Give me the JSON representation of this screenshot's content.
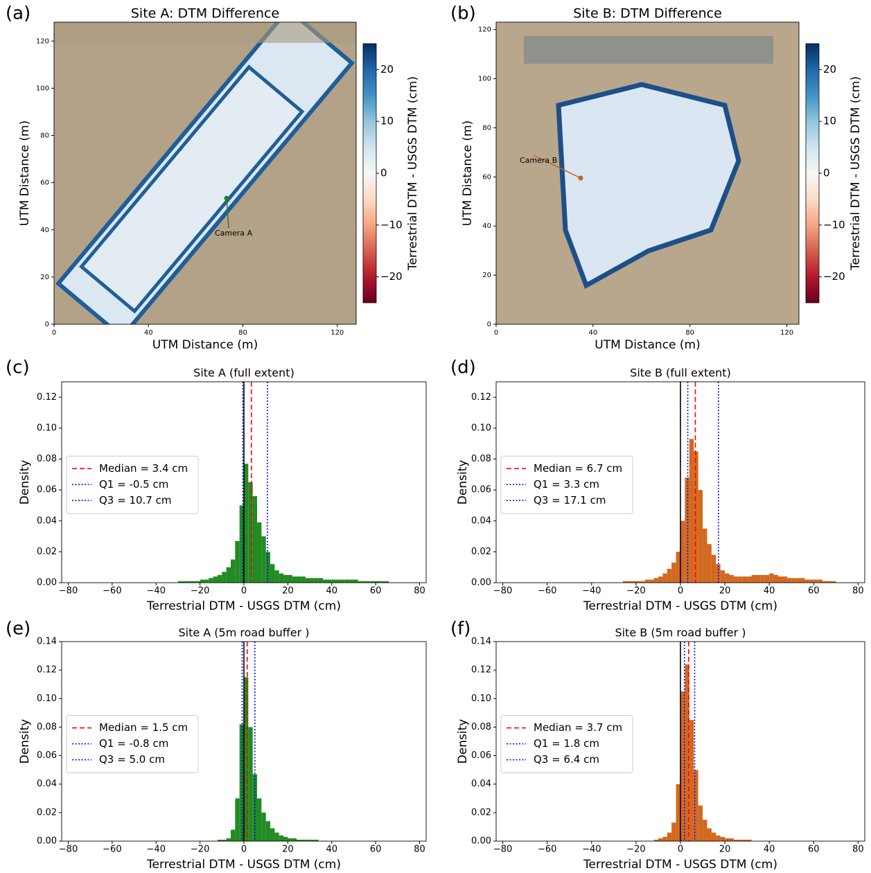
{
  "chart_data": [
    {
      "type": "heatmap",
      "panel_label": "(a)",
      "title": "Site A: DTM Difference",
      "xlabel": "UTM Distance (m)",
      "ylabel": "UTM Distance (m)",
      "xlim": [
        0,
        128
      ],
      "ylim": [
        0,
        128
      ],
      "xticks": [
        0,
        40,
        80,
        120
      ],
      "yticks": [
        0,
        20,
        40,
        60,
        80,
        100,
        120
      ],
      "colorbar_label": "Terrestrial DTM - USGS DTM (cm)",
      "clim": [
        -25,
        25
      ],
      "cticks": [
        {
          "value": -20,
          "label": "−20"
        },
        {
          "value": -10,
          "label": "−10"
        },
        0,
        10,
        20
      ],
      "annotation": "Camera A",
      "annotation_color": "#2a7a2a"
    },
    {
      "type": "heatmap",
      "panel_label": "(b)",
      "title": "Site B: DTM Difference",
      "xlabel": "UTM Distance (m)",
      "ylabel": "UTM Distance (m)",
      "xlim": [
        0,
        125
      ],
      "ylim": [
        0,
        123
      ],
      "xticks": [
        0,
        40,
        80,
        120
      ],
      "yticks": [
        0,
        20,
        40,
        60,
        80,
        100,
        120
      ],
      "colorbar_label": "Terrestrial DTM - USGS DTM (cm)",
      "clim": [
        -25,
        25
      ],
      "cticks": [
        {
          "value": -20,
          "label": "−20"
        },
        {
          "value": -10,
          "label": "−10"
        },
        0,
        10,
        20
      ],
      "annotation": "Camera B",
      "annotation_color": "#c8621e"
    },
    {
      "type": "histogram",
      "panel_label": "(c)",
      "title": "Site A (full extent)",
      "xlabel": "Terrestrial DTM - USGS DTM (cm)",
      "ylabel": "Density",
      "color": "#228b22",
      "bins": [
        -30,
        -28,
        -26,
        -24,
        -22,
        -20,
        -18,
        -16,
        -14,
        -12,
        -10,
        -8,
        -6,
        -4,
        -2,
        0,
        2,
        4,
        6,
        8,
        10,
        12,
        14,
        16,
        18,
        20,
        22,
        24,
        26,
        28,
        30,
        32,
        34,
        36,
        38,
        40,
        42,
        44,
        46,
        48,
        50,
        52,
        54,
        56,
        58,
        60,
        62,
        64,
        66,
        68,
        70
      ],
      "counts": [
        0.001,
        0.001,
        0.001,
        0.001,
        0.001,
        0.002,
        0.002,
        0.003,
        0.004,
        0.005,
        0.007,
        0.01,
        0.015,
        0.027,
        0.05,
        0.077,
        0.065,
        0.056,
        0.039,
        0.03,
        0.02,
        0.012,
        0.008,
        0.006,
        0.005,
        0.005,
        0.004,
        0.004,
        0.004,
        0.003,
        0.003,
        0.003,
        0.003,
        0.002,
        0.002,
        0.002,
        0.002,
        0.002,
        0.002,
        0.002,
        0.002,
        0.001,
        0.001,
        0.001,
        0.001,
        0.001,
        0.001,
        0.001,
        0.0,
        0.0
      ],
      "vlines": [
        {
          "value": 0,
          "color": "black",
          "style": "solid"
        },
        {
          "name": "Median = 3.4 cm",
          "value": 3.4,
          "color": "red",
          "style": "dashed"
        },
        {
          "name": "Q1 = -0.5 cm",
          "value": -0.5,
          "color": "blue",
          "style": "dotted"
        },
        {
          "name": "Q3 = 10.7 cm",
          "value": 10.7,
          "color": "blue",
          "style": "dotted"
        }
      ],
      "xlim": [
        -83,
        83
      ],
      "ylim": [
        0,
        0.13
      ],
      "xticks": [
        {
          "value": -80,
          "label": "−80"
        },
        {
          "value": -60,
          "label": "−60"
        },
        {
          "value": -40,
          "label": "−40"
        },
        {
          "value": -20,
          "label": "−20"
        },
        0,
        20,
        40,
        60,
        80
      ],
      "yticks": [
        {
          "value": 0,
          "label": "0.00"
        },
        0.02,
        0.04,
        0.06,
        0.08,
        {
          "value": 0.1,
          "label": "0.10"
        },
        0.12
      ],
      "legend": "center left"
    },
    {
      "type": "histogram",
      "panel_label": "(d)",
      "title": "Site B (full extent)",
      "xlabel": "Terrestrial DTM - USGS DTM (cm)",
      "ylabel": "Density",
      "color": "#d2691e",
      "bins": [
        -30,
        -28,
        -26,
        -24,
        -22,
        -20,
        -18,
        -16,
        -14,
        -12,
        -10,
        -8,
        -6,
        -4,
        -2,
        0,
        2,
        4,
        6,
        8,
        10,
        12,
        14,
        16,
        18,
        20,
        22,
        24,
        26,
        28,
        30,
        32,
        34,
        36,
        38,
        40,
        42,
        44,
        46,
        48,
        50,
        52,
        54,
        56,
        58,
        60,
        62,
        64,
        66,
        68,
        70
      ],
      "counts": [
        0,
        0,
        0.001,
        0.001,
        0.001,
        0.001,
        0.001,
        0.002,
        0.002,
        0.003,
        0.004,
        0.006,
        0.009,
        0.013,
        0.02,
        0.04,
        0.068,
        0.093,
        0.085,
        0.06,
        0.035,
        0.025,
        0.018,
        0.012,
        0.008,
        0.006,
        0.005,
        0.004,
        0.004,
        0.004,
        0.004,
        0.005,
        0.005,
        0.005,
        0.005,
        0.006,
        0.005,
        0.004,
        0.004,
        0.003,
        0.003,
        0.003,
        0.003,
        0.002,
        0.002,
        0.002,
        0.002,
        0.001,
        0.001,
        0.001
      ],
      "vlines": [
        {
          "value": 0,
          "color": "black",
          "style": "solid"
        },
        {
          "name": "Median = 6.7 cm",
          "value": 6.7,
          "color": "red",
          "style": "dashed"
        },
        {
          "name": "Q1 = 3.3 cm",
          "value": 3.3,
          "color": "blue",
          "style": "dotted"
        },
        {
          "name": "Q3 = 17.1 cm",
          "value": 17.1,
          "color": "blue",
          "style": "dotted"
        }
      ],
      "xlim": [
        -83,
        83
      ],
      "ylim": [
        0,
        0.13
      ],
      "xticks": [
        {
          "value": -80,
          "label": "−80"
        },
        {
          "value": -60,
          "label": "−60"
        },
        {
          "value": -40,
          "label": "−40"
        },
        {
          "value": -20,
          "label": "−20"
        },
        0,
        20,
        40,
        60,
        80
      ],
      "yticks": [
        {
          "value": 0,
          "label": "0.00"
        },
        0.02,
        0.04,
        0.06,
        0.08,
        {
          "value": 0.1,
          "label": "0.10"
        },
        0.12
      ],
      "legend": "center left"
    },
    {
      "type": "histogram",
      "panel_label": "(e)",
      "title": "Site A (5m road buffer )",
      "xlabel": "Terrestrial DTM - USGS DTM (cm)",
      "ylabel": "Density",
      "color": "#228b22",
      "bins": [
        -30,
        -28,
        -26,
        -24,
        -22,
        -20,
        -18,
        -16,
        -14,
        -12,
        -10,
        -8,
        -6,
        -4,
        -2,
        0,
        2,
        4,
        6,
        8,
        10,
        12,
        14,
        16,
        18,
        20,
        22,
        24,
        26,
        28,
        30,
        32,
        34,
        36,
        38,
        40,
        42,
        44,
        46,
        48,
        50,
        52,
        54,
        56,
        58,
        60,
        62,
        64,
        66,
        68,
        70
      ],
      "counts": [
        0,
        0,
        0,
        0,
        0,
        0,
        0,
        0,
        0,
        0.001,
        0.001,
        0.002,
        0.008,
        0.03,
        0.082,
        0.115,
        0.08,
        0.047,
        0.03,
        0.02,
        0.014,
        0.009,
        0.006,
        0.004,
        0.003,
        0.002,
        0.002,
        0.001,
        0.001,
        0.001,
        0.001,
        0.001,
        0,
        0,
        0,
        0,
        0,
        0,
        0,
        0,
        0,
        0,
        0,
        0,
        0,
        0,
        0,
        0,
        0,
        0
      ],
      "vlines": [
        {
          "value": 0,
          "color": "black",
          "style": "solid"
        },
        {
          "name": "Median = 1.5 cm",
          "value": 1.5,
          "color": "red",
          "style": "dashed"
        },
        {
          "name": "Q1 = -0.8 cm",
          "value": -0.8,
          "color": "blue",
          "style": "dotted"
        },
        {
          "name": "Q3 = 5.0 cm",
          "value": 5.0,
          "color": "blue",
          "style": "dotted"
        }
      ],
      "xlim": [
        -83,
        83
      ],
      "ylim": [
        0,
        0.14
      ],
      "xticks": [
        {
          "value": -80,
          "label": "−80"
        },
        {
          "value": -60,
          "label": "−60"
        },
        {
          "value": -40,
          "label": "−40"
        },
        {
          "value": -20,
          "label": "−20"
        },
        0,
        20,
        40,
        60,
        80
      ],
      "yticks": [
        {
          "value": 0,
          "label": "0.00"
        },
        0.02,
        0.04,
        0.06,
        0.08,
        {
          "value": 0.1,
          "label": "0.10"
        },
        0.12,
        0.14
      ],
      "legend": "center left"
    },
    {
      "type": "histogram",
      "panel_label": "(f)",
      "title": "Site B (5m road buffer )",
      "xlabel": "Terrestrial DTM - USGS DTM (cm)",
      "ylabel": "Density",
      "color": "#d2691e",
      "bins": [
        -30,
        -28,
        -26,
        -24,
        -22,
        -20,
        -18,
        -16,
        -14,
        -12,
        -10,
        -8,
        -6,
        -4,
        -2,
        0,
        2,
        4,
        6,
        8,
        10,
        12,
        14,
        16,
        18,
        20,
        22,
        24,
        26,
        28,
        30,
        32,
        34,
        36,
        38,
        40,
        42,
        44,
        46,
        48,
        50,
        52,
        54,
        56,
        58,
        60,
        62,
        64,
        66,
        68,
        70
      ],
      "counts": [
        0,
        0,
        0,
        0,
        0,
        0,
        0,
        0,
        0,
        0.001,
        0.002,
        0.003,
        0.006,
        0.013,
        0.04,
        0.105,
        0.124,
        0.085,
        0.05,
        0.025,
        0.015,
        0.009,
        0.006,
        0.004,
        0.003,
        0.002,
        0.002,
        0.001,
        0.001,
        0.001,
        0.001,
        0,
        0,
        0,
        0,
        0,
        0,
        0,
        0,
        0,
        0,
        0,
        0,
        0,
        0,
        0,
        0,
        0,
        0,
        0
      ],
      "vlines": [
        {
          "value": 0,
          "color": "black",
          "style": "solid"
        },
        {
          "name": "Median = 3.7 cm",
          "value": 3.7,
          "color": "red",
          "style": "dashed"
        },
        {
          "name": "Q1 = 1.8 cm",
          "value": 1.8,
          "color": "blue",
          "style": "dotted"
        },
        {
          "name": "Q3 = 6.4 cm",
          "value": 6.4,
          "color": "blue",
          "style": "dotted"
        }
      ],
      "xlim": [
        -83,
        83
      ],
      "ylim": [
        0,
        0.14
      ],
      "xticks": [
        {
          "value": -80,
          "label": "−80"
        },
        {
          "value": -60,
          "label": "−60"
        },
        {
          "value": -40,
          "label": "−40"
        },
        {
          "value": -20,
          "label": "−20"
        },
        0,
        20,
        40,
        60,
        80
      ],
      "yticks": [
        {
          "value": 0,
          "label": "0.00"
        },
        0.02,
        0.04,
        0.06,
        0.08,
        {
          "value": 0.1,
          "label": "0.10"
        },
        0.12,
        0.14
      ],
      "legend": "center left"
    }
  ]
}
